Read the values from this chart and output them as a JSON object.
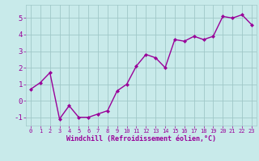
{
  "x": [
    0,
    1,
    2,
    3,
    4,
    5,
    6,
    7,
    8,
    9,
    10,
    11,
    12,
    13,
    14,
    15,
    16,
    17,
    18,
    19,
    20,
    21,
    22,
    23
  ],
  "y": [
    0.7,
    1.1,
    1.7,
    -1.1,
    -0.3,
    -1.0,
    -1.0,
    -0.8,
    -0.6,
    0.6,
    1.0,
    2.1,
    2.8,
    2.6,
    2.0,
    3.7,
    3.6,
    3.9,
    3.7,
    3.9,
    5.1,
    5.0,
    5.2,
    4.6
  ],
  "line_color": "#990099",
  "marker": "D",
  "marker_size": 2.0,
  "bg_color": "#c8eaea",
  "grid_color": "#a0c8c8",
  "xlabel": "Windchill (Refroidissement éolien,°C)",
  "ylim": [
    -1.5,
    5.8
  ],
  "xlim": [
    -0.5,
    23.5
  ],
  "yticks": [
    -1,
    0,
    1,
    2,
    3,
    4,
    5
  ],
  "xticks": [
    0,
    1,
    2,
    3,
    4,
    5,
    6,
    7,
    8,
    9,
    10,
    11,
    12,
    13,
    14,
    15,
    16,
    17,
    18,
    19,
    20,
    21,
    22,
    23
  ],
  "xlabel_color": "#990099",
  "tick_color": "#990099",
  "linewidth": 1.0,
  "xlabel_fontsize": 6.0,
  "ytick_fontsize": 6.5,
  "xtick_fontsize": 5.0
}
